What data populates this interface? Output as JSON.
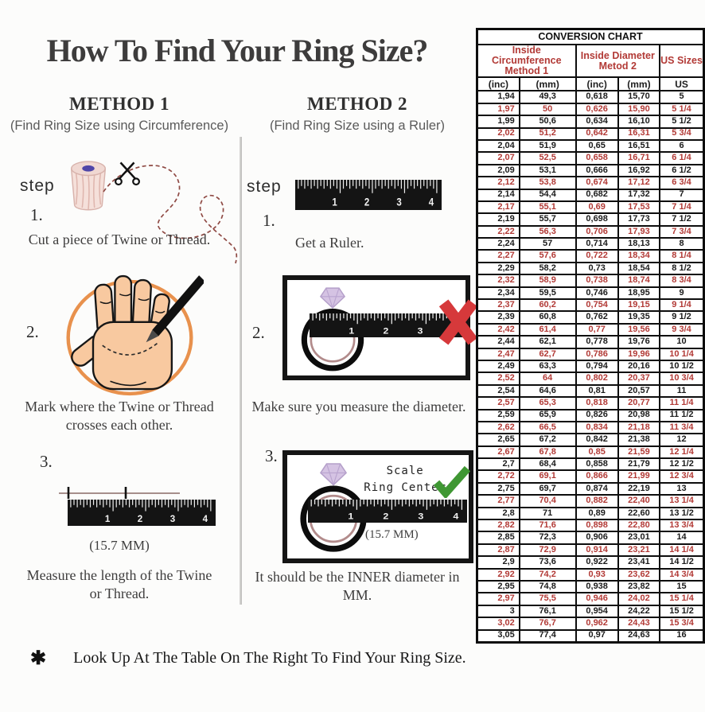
{
  "title": "How To Find Your Ring Size?",
  "method1": {
    "heading": "METHOD 1",
    "subheading": "(Find Ring Size using Circumference)",
    "step_label": "step",
    "steps": [
      {
        "num": "1.",
        "text": "Cut a piece of  Twine or Thread."
      },
      {
        "num": "2.",
        "text": "Mark where the Twine or Thread crosses each other."
      },
      {
        "num": "3.",
        "note": "(15.7 MM)",
        "text": "Measure the length of the Twine or Thread."
      }
    ]
  },
  "method2": {
    "heading": "METHOD 2",
    "subheading": "(Find Ring Size using a Ruler)",
    "step_label": "step",
    "steps": [
      {
        "num": "1.",
        "text": "Get a Ruler."
      },
      {
        "num": "2.",
        "text": "Make sure you measure the diameter."
      },
      {
        "num": "3.",
        "scale_line1": "Scale",
        "scale_line2": "Ring Center",
        "note": "(15.7 MM)",
        "text": "It should be the INNER diameter in MM."
      }
    ]
  },
  "footnote": {
    "asterisk": "✱",
    "text": "Look Up At The Table On The Right To Find Your Ring Size."
  },
  "illustrations": {
    "ruler_numbers": [
      "1",
      "2",
      "3",
      "4"
    ]
  },
  "colors": {
    "table_red": "#b23a36",
    "check_green": "#3f9733",
    "x_red": "#d6393b",
    "circle_orange": "#e8914d"
  },
  "conversion_chart": {
    "title": "CONVERSION CHART",
    "col_groups": [
      {
        "line1": "Inside Circumference",
        "line2": "Method 1"
      },
      {
        "line1": "Inside Diameter",
        "line2": "Metod 2"
      },
      {
        "line1": "US Sizes"
      }
    ],
    "subheaders": [
      "(inc)",
      "(mm)",
      "(inc)",
      "(mm)",
      "US"
    ],
    "rows": [
      [
        "1,94",
        "49,3",
        "0,618",
        "15,70",
        "5"
      ],
      [
        "1,97",
        "50",
        "0,626",
        "15,90",
        "5 1/4"
      ],
      [
        "1,99",
        "50,6",
        "0,634",
        "16,10",
        "5 1/2"
      ],
      [
        "2,02",
        "51,2",
        "0,642",
        "16,31",
        "5 3/4"
      ],
      [
        "2,04",
        "51,9",
        "0,65",
        "16,51",
        "6"
      ],
      [
        "2,07",
        "52,5",
        "0,658",
        "16,71",
        "6 1/4"
      ],
      [
        "2,09",
        "53,1",
        "0,666",
        "16,92",
        "6 1/2"
      ],
      [
        "2,12",
        "53,8",
        "0,674",
        "17,12",
        "6 3/4"
      ],
      [
        "2,14",
        "54,4",
        "0,682",
        "17,32",
        "7"
      ],
      [
        "2,17",
        "55,1",
        "0,69",
        "17,53",
        "7 1/4"
      ],
      [
        "2,19",
        "55,7",
        "0,698",
        "17,73",
        "7 1/2"
      ],
      [
        "2,22",
        "56,3",
        "0,706",
        "17,93",
        "7 3/4"
      ],
      [
        "2,24",
        "57",
        "0,714",
        "18,13",
        "8"
      ],
      [
        "2,27",
        "57,6",
        "0,722",
        "18,34",
        "8 1/4"
      ],
      [
        "2,29",
        "58,2",
        "0,73",
        "18,54",
        "8 1/2"
      ],
      [
        "2,32",
        "58,9",
        "0,738",
        "18,74",
        "8 3/4"
      ],
      [
        "2,34",
        "59,5",
        "0,746",
        "18,95",
        "9"
      ],
      [
        "2,37",
        "60,2",
        "0,754",
        "19,15",
        "9 1/4"
      ],
      [
        "2,39",
        "60,8",
        "0,762",
        "19,35",
        "9 1/2"
      ],
      [
        "2,42",
        "61,4",
        "0,77",
        "19,56",
        "9 3/4"
      ],
      [
        "2,44",
        "62,1",
        "0,778",
        "19,76",
        "10"
      ],
      [
        "2,47",
        "62,7",
        "0,786",
        "19,96",
        "10 1/4"
      ],
      [
        "2,49",
        "63,3",
        "0,794",
        "20,16",
        "10 1/2"
      ],
      [
        "2,52",
        "64",
        "0,802",
        "20,37",
        "10 3/4"
      ],
      [
        "2,54",
        "64,6",
        "0,81",
        "20,57",
        "11"
      ],
      [
        "2,57",
        "65,3",
        "0,818",
        "20,77",
        "11 1/4"
      ],
      [
        "2,59",
        "65,9",
        "0,826",
        "20,98",
        "11 1/2"
      ],
      [
        "2,62",
        "66,5",
        "0,834",
        "21,18",
        "11 3/4"
      ],
      [
        "2,65",
        "67,2",
        "0,842",
        "21,38",
        "12"
      ],
      [
        "2,67",
        "67,8",
        "0,85",
        "21,59",
        "12 1/4"
      ],
      [
        "2,7",
        "68,4",
        "0,858",
        "21,79",
        "12 1/2"
      ],
      [
        "2,72",
        "69,1",
        "0,866",
        "21,99",
        "12 3/4"
      ],
      [
        "2,75",
        "69,7",
        "0,874",
        "22,19",
        "13"
      ],
      [
        "2,77",
        "70,4",
        "0,882",
        "22,40",
        "13 1/4"
      ],
      [
        "2,8",
        "71",
        "0,89",
        "22,60",
        "13 1/2"
      ],
      [
        "2,82",
        "71,6",
        "0,898",
        "22,80",
        "13 3/4"
      ],
      [
        "2,85",
        "72,3",
        "0,906",
        "23,01",
        "14"
      ],
      [
        "2,87",
        "72,9",
        "0,914",
        "23,21",
        "14 1/4"
      ],
      [
        "2,9",
        "73,6",
        "0,922",
        "23,41",
        "14 1/2"
      ],
      [
        "2,92",
        "74,2",
        "0,93",
        "23,62",
        "14 3/4"
      ],
      [
        "2,95",
        "74,8",
        "0,938",
        "23,82",
        "15"
      ],
      [
        "2,97",
        "75,5",
        "0,946",
        "24,02",
        "15 1/4"
      ],
      [
        "3",
        "76,1",
        "0,954",
        "24,22",
        "15 1/2"
      ],
      [
        "3,02",
        "76,7",
        "0,962",
        "24,43",
        "15 3/4"
      ],
      [
        "3,05",
        "77,4",
        "0,97",
        "24,63",
        "16"
      ]
    ]
  }
}
